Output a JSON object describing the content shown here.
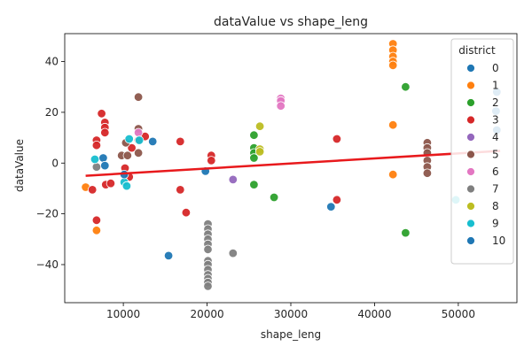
{
  "chart_data": {
    "type": "scatter",
    "title": "dataValue vs shape_leng",
    "xlabel": "shape_leng",
    "ylabel": "dataValue",
    "xlim": [
      3000,
      57000
    ],
    "ylim": [
      -55,
      51
    ],
    "xticks": [
      10000,
      20000,
      30000,
      40000,
      50000
    ],
    "xtick_labels": [
      "10000",
      "20000",
      "30000",
      "40000",
      "50000"
    ],
    "yticks": [
      -40,
      -20,
      0,
      20,
      40
    ],
    "ytick_labels": [
      "−40",
      "−20",
      "0",
      "20",
      "40"
    ],
    "grid": false,
    "legend": {
      "title": "district",
      "position": "top-right"
    },
    "regression_line": {
      "color": "#e8191c",
      "x": [
        5500,
        55000
      ],
      "y": [
        -5.0,
        4.8
      ]
    },
    "series": [
      {
        "name": "0",
        "color": "#1f77b4",
        "points": [
          [
            7600,
            2
          ],
          [
            7800,
            -1
          ],
          [
            13500,
            8.5
          ],
          [
            19800,
            -3.2
          ],
          [
            34800,
            -17.2
          ],
          [
            54500,
            20.5
          ]
        ]
      },
      {
        "name": "1",
        "color": "#ff7f0e",
        "points": [
          [
            5500,
            -9.5
          ],
          [
            6800,
            -26.5
          ],
          [
            42200,
            47
          ],
          [
            42200,
            44.5
          ],
          [
            42200,
            42
          ],
          [
            42200,
            40
          ],
          [
            42200,
            38.5
          ],
          [
            42200,
            15
          ],
          [
            42200,
            -4.5
          ]
        ]
      },
      {
        "name": "2",
        "color": "#2ca02c",
        "points": [
          [
            25600,
            11
          ],
          [
            25600,
            6
          ],
          [
            25600,
            4
          ],
          [
            25600,
            2
          ],
          [
            25600,
            -8.5
          ],
          [
            28000,
            -13.5
          ],
          [
            43700,
            30
          ],
          [
            43700,
            -27.5
          ]
        ]
      },
      {
        "name": "3",
        "color": "#d62728",
        "points": [
          [
            6300,
            -10.5
          ],
          [
            6800,
            -22.5
          ],
          [
            6800,
            9
          ],
          [
            6800,
            7
          ],
          [
            7400,
            19.5
          ],
          [
            7800,
            16
          ],
          [
            7800,
            14
          ],
          [
            7800,
            12
          ],
          [
            7900,
            -8.5
          ],
          [
            8500,
            -8
          ],
          [
            10200,
            -2
          ],
          [
            10700,
            -5.5
          ],
          [
            11000,
            6
          ],
          [
            11800,
            9
          ],
          [
            12600,
            10.5
          ],
          [
            16800,
            8.5
          ],
          [
            16800,
            -10.5
          ],
          [
            17500,
            -19.5
          ],
          [
            20500,
            3
          ],
          [
            20500,
            1
          ],
          [
            35500,
            9.5
          ],
          [
            35500,
            -14.5
          ]
        ]
      },
      {
        "name": "4",
        "color": "#9467bd",
        "points": [
          [
            23100,
            -6.5
          ]
        ]
      },
      {
        "name": "5",
        "color": "#8c564b",
        "points": [
          [
            9800,
            3
          ],
          [
            10500,
            3
          ],
          [
            10300,
            8
          ],
          [
            11800,
            26
          ],
          [
            11800,
            13.5
          ],
          [
            11800,
            4
          ],
          [
            46300,
            8
          ],
          [
            46300,
            6
          ],
          [
            46300,
            4
          ],
          [
            46300,
            1
          ],
          [
            46300,
            -1.5
          ],
          [
            46300,
            -4
          ]
        ]
      },
      {
        "name": "6",
        "color": "#e377c2",
        "points": [
          [
            11800,
            12
          ],
          [
            28800,
            25.5
          ],
          [
            28800,
            24.5
          ],
          [
            28800,
            22.5
          ]
        ]
      },
      {
        "name": "7",
        "color": "#7f7f7f",
        "points": [
          [
            6800,
            -1.5
          ],
          [
            20100,
            -24
          ],
          [
            20100,
            -26
          ],
          [
            20100,
            -28
          ],
          [
            20100,
            -30
          ],
          [
            20100,
            -32
          ],
          [
            20100,
            -34
          ],
          [
            20100,
            -38.5
          ],
          [
            20100,
            -40
          ],
          [
            20100,
            -42
          ],
          [
            20100,
            -44
          ],
          [
            20100,
            -45.5
          ],
          [
            20100,
            -47
          ],
          [
            20100,
            -48.5
          ],
          [
            23100,
            -35.5
          ]
        ]
      },
      {
        "name": "8",
        "color": "#bcbd22",
        "points": [
          [
            26300,
            14.5
          ],
          [
            26300,
            5.5
          ],
          [
            26300,
            4.5
          ]
        ]
      },
      {
        "name": "9",
        "color": "#17becf",
        "points": [
          [
            6600,
            1.5
          ],
          [
            10100,
            -7.5
          ],
          [
            10400,
            -9
          ],
          [
            10700,
            9.5
          ],
          [
            11900,
            9
          ],
          [
            49700,
            -14.5
          ]
        ]
      },
      {
        "name": "10",
        "color": "#1f77b4",
        "points": [
          [
            10100,
            -4.5
          ],
          [
            15400,
            -36.5
          ],
          [
            54600,
            28
          ],
          [
            54600,
            13
          ]
        ]
      }
    ]
  }
}
